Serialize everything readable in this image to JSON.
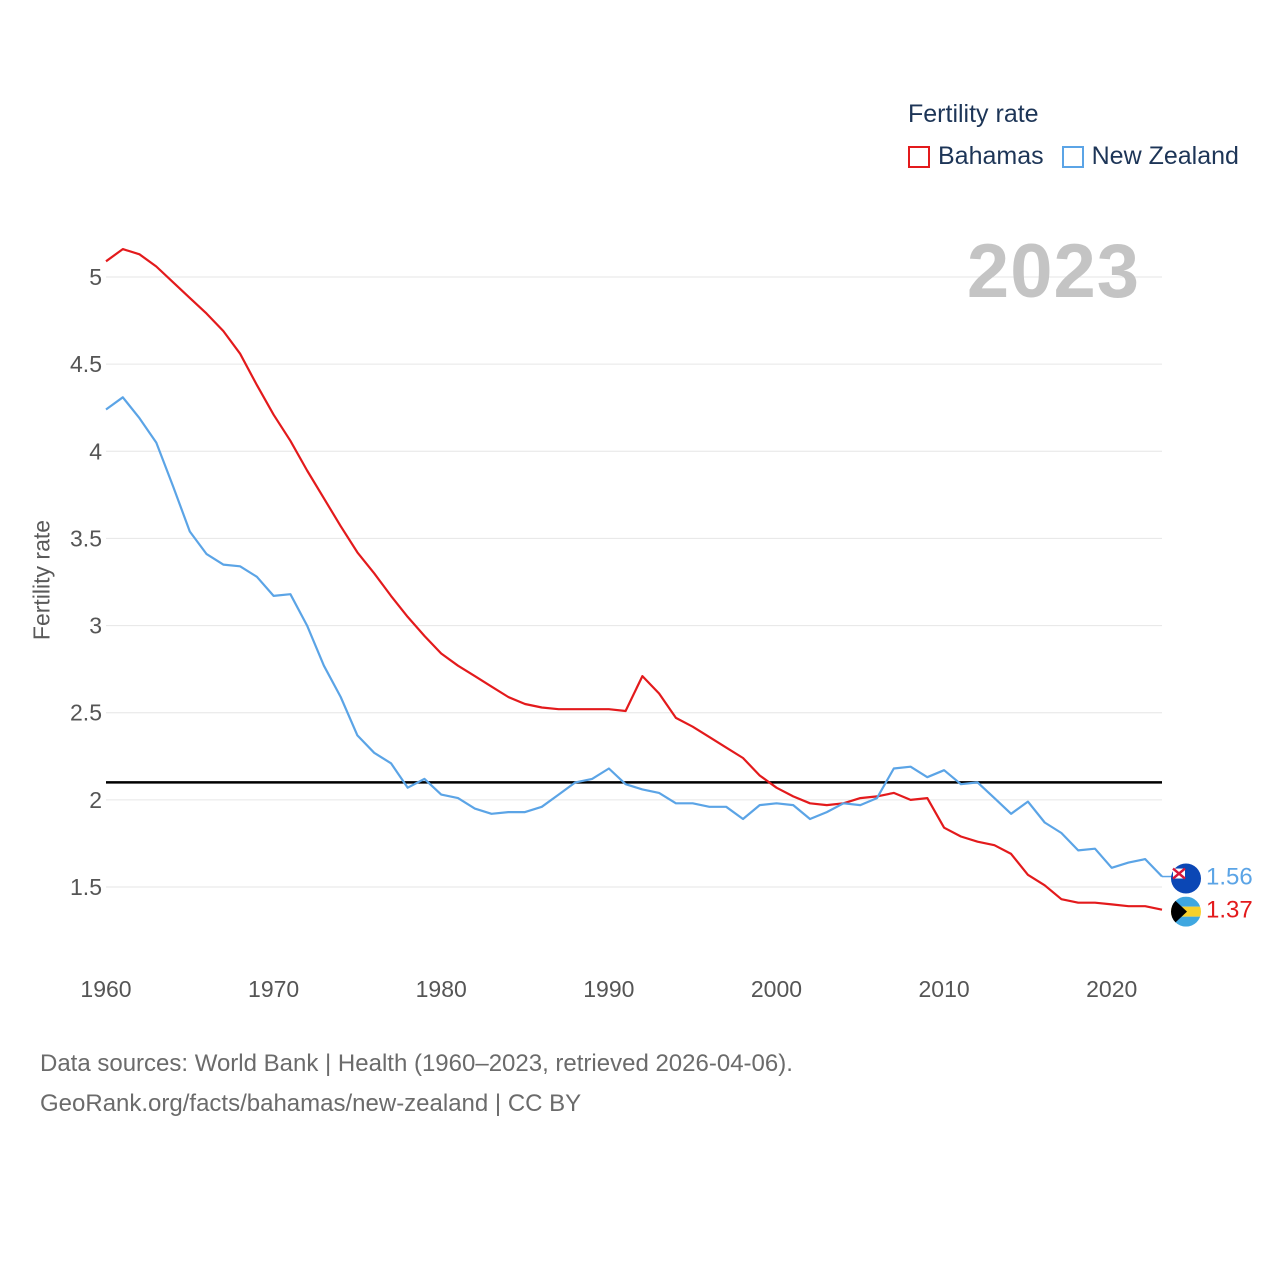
{
  "legend": {
    "title": "Fertility rate",
    "items": [
      {
        "name": "Bahamas",
        "color": "#e31a1c"
      },
      {
        "name": "New Zealand",
        "color": "#5ba4e6"
      }
    ]
  },
  "year_label": "2023",
  "source": {
    "line1": "Data sources: World Bank | Health (1960–2023, retrieved 2026-04-06).",
    "line2": "GeoRank.org/facts/bahamas/new-zealand | CC BY"
  },
  "chart_data": {
    "type": "line",
    "title": "Fertility rate",
    "xlabel": "",
    "ylabel": "Fertility rate",
    "xlim": [
      1960,
      2023
    ],
    "ylim": [
      1.25,
      5.2
    ],
    "x_ticks": [
      1960,
      1970,
      1980,
      1990,
      2000,
      2010,
      2020
    ],
    "y_ticks": [
      1.5,
      2,
      2.5,
      3,
      3.5,
      4,
      4.5,
      5
    ],
    "grid": true,
    "reference_line": {
      "value": 2.1,
      "color": "#000000"
    },
    "x": [
      1960,
      1961,
      1962,
      1963,
      1964,
      1965,
      1966,
      1967,
      1968,
      1969,
      1970,
      1971,
      1972,
      1973,
      1974,
      1975,
      1976,
      1977,
      1978,
      1979,
      1980,
      1981,
      1982,
      1983,
      1984,
      1985,
      1986,
      1987,
      1988,
      1989,
      1990,
      1991,
      1992,
      1993,
      1994,
      1995,
      1996,
      1997,
      1998,
      1999,
      2000,
      2001,
      2002,
      2003,
      2004,
      2005,
      2006,
      2007,
      2008,
      2009,
      2010,
      2011,
      2012,
      2013,
      2014,
      2015,
      2016,
      2017,
      2018,
      2019,
      2020,
      2021,
      2022,
      2023
    ],
    "series": [
      {
        "name": "Bahamas",
        "color": "#e31a1c",
        "end_label": "1.37",
        "values": [
          5.09,
          5.16,
          5.13,
          5.06,
          4.97,
          4.88,
          4.79,
          4.69,
          4.56,
          4.38,
          4.21,
          4.06,
          3.89,
          3.73,
          3.57,
          3.42,
          3.3,
          3.17,
          3.05,
          2.94,
          2.84,
          2.77,
          2.71,
          2.65,
          2.59,
          2.55,
          2.53,
          2.52,
          2.52,
          2.52,
          2.52,
          2.51,
          2.71,
          2.61,
          2.47,
          2.42,
          2.36,
          2.3,
          2.24,
          2.14,
          2.07,
          2.02,
          1.98,
          1.97,
          1.98,
          2.01,
          2.02,
          2.04,
          2.0,
          2.01,
          1.84,
          1.79,
          1.76,
          1.74,
          1.69,
          1.57,
          1.51,
          1.43,
          1.41,
          1.41,
          1.4,
          1.39,
          1.39,
          1.37
        ]
      },
      {
        "name": "New Zealand",
        "color": "#5ba4e6",
        "end_label": "1.56",
        "values": [
          4.24,
          4.31,
          4.19,
          4.05,
          3.8,
          3.54,
          3.41,
          3.35,
          3.34,
          3.28,
          3.17,
          3.18,
          3.0,
          2.77,
          2.59,
          2.37,
          2.27,
          2.21,
          2.07,
          2.12,
          2.03,
          2.01,
          1.95,
          1.92,
          1.93,
          1.93,
          1.96,
          2.03,
          2.1,
          2.12,
          2.18,
          2.09,
          2.06,
          2.04,
          1.98,
          1.98,
          1.96,
          1.96,
          1.89,
          1.97,
          1.98,
          1.97,
          1.89,
          1.93,
          1.98,
          1.97,
          2.01,
          2.18,
          2.19,
          2.13,
          2.17,
          2.09,
          2.1,
          2.01,
          1.92,
          1.99,
          1.87,
          1.81,
          1.71,
          1.72,
          1.61,
          1.64,
          1.66,
          1.56
        ]
      }
    ]
  }
}
